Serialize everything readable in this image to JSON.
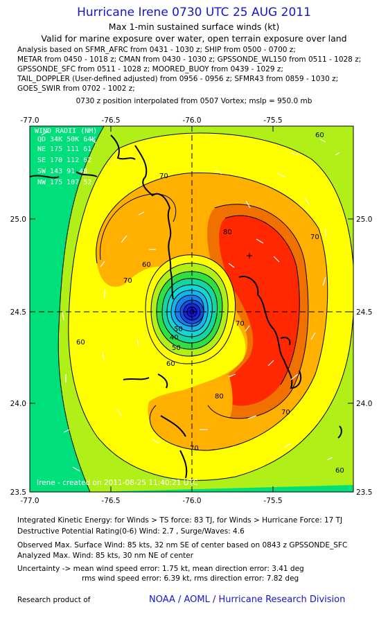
{
  "header": {
    "title": "Hurricane Irene 0730 UTC 25 AUG 2011",
    "subtitle_line1": "Max 1-min sustained surface winds (kt)",
    "subtitle_line2": "Valid for marine exposure over water, open terrain exposure over land",
    "analysis_lines": [
      "Analysis based on SFMR_AFRC from 0431 - 1030 z; SHIP from 0500 - 0700 z;",
      "METAR from 0450 - 1018 z; CMAN from 0430 - 1030 z; GPSSONDE_WL150 from 0511 - 1028 z;",
      "GPSSONDE_SFC from 0511 - 1028 z; MOORED_BUOY from 0439 - 1029 z;",
      "TAIL_DOPPLER (User-defined adjusted) from 0956 - 0956 z; SFMR43 from 0859 - 1030 z;",
      "GOES_SWIR from 0702 - 1002 z;"
    ],
    "position_note": "0730 z position interpolated from 0507 Vortex; mslp = 950.0 mb"
  },
  "map": {
    "lon_ticks": [
      "-77.0",
      "-76.5",
      "-76.0",
      "-75.5"
    ],
    "lat_ticks": [
      "25.0",
      "24.5",
      "24.0",
      "23.5"
    ],
    "center": {
      "lon": -76.0,
      "lat": 24.5
    },
    "max_wind_marker": {
      "lon": -75.65,
      "lat": 24.8
    },
    "wind_radii": {
      "title": "WIND RADII (NM)",
      "header": "QD  34K  50K  64K",
      "rows": [
        "NE  175  111   61",
        "SE  170  112   62",
        "SW  143   91   48",
        "NW  175  107   52"
      ]
    },
    "contour_labels": [
      "60",
      "70",
      "80",
      "70",
      "60",
      "50",
      "40",
      "50",
      "60",
      "70",
      "80",
      "70",
      "60",
      "70",
      "70",
      "60"
    ],
    "watermark": "Irene - created on 2011-08-25 11:40:21 UTC",
    "colors": {
      "lt60": "#00e07a",
      "60_70": "#b0f018",
      "70_80": "#ffff00",
      "80_90": "#ffb000",
      "90_100": "#f07000",
      "gt100": "#ff2800",
      "eye_outer": "#14d6d6",
      "eye_inner": "#1414e0"
    }
  },
  "stats": {
    "ike": "Integrated Kinetic Energy:  for Winds > TS force: 83 TJ,  for Winds > Hurricane Force: 17 TJ",
    "dpr": "Destructive Potential Rating(0-6)   Wind: 2.7 , Surge/Waves: 4.6",
    "obs_max": "Observed Max. Surface Wind: 85 kts, 32 nm SE of center based on 0843 z GPSSONDE_SFC",
    "analyzed_max": "Analyzed Max. Wind: 85 kts, 30 nm NE of center",
    "unc_1": "Uncertainty -> mean wind speed error: 1.75 kt,   mean direction error: 3.41 deg",
    "unc_2": "rms wind speed error: 6.39 kt,   rms direction error: 7.82 deg"
  },
  "credit": {
    "label": "Research product of",
    "org": "NOAA / AOML / Hurricane Research Division"
  }
}
